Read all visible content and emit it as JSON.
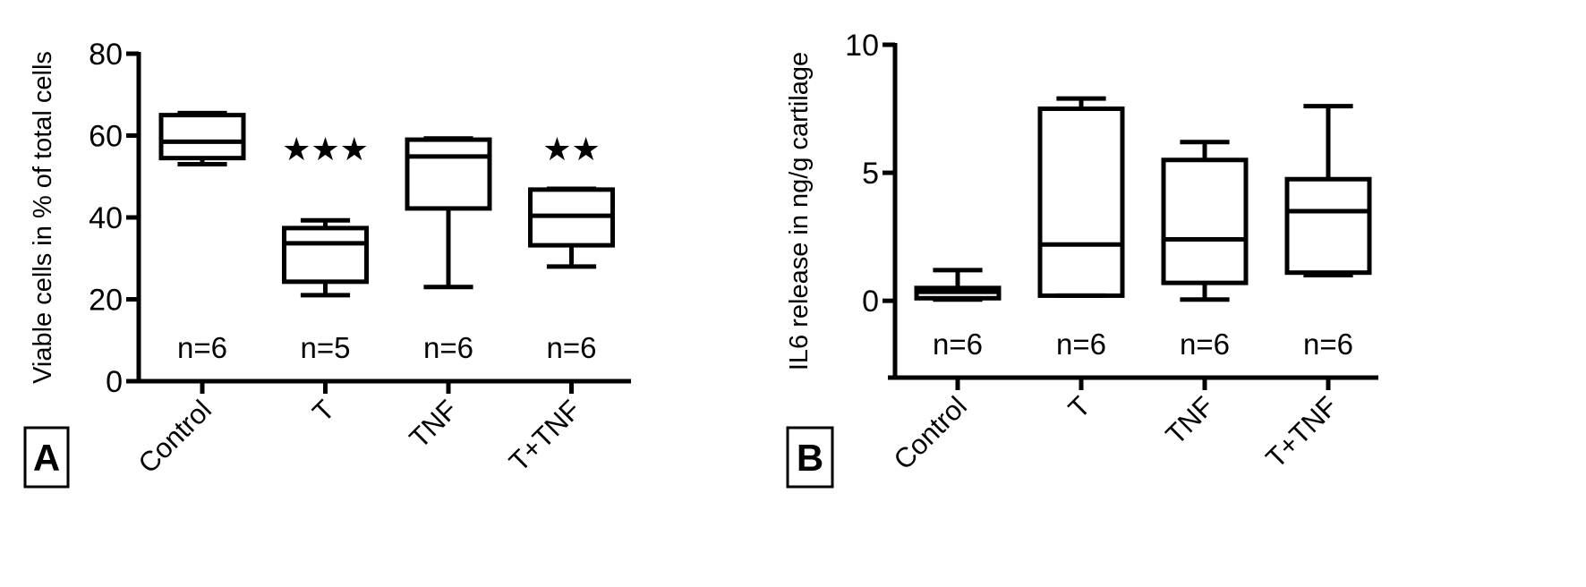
{
  "chart_data": [
    {
      "type": "box",
      "panel_label": "A",
      "y_label": "Viable cells in % of total cells",
      "categories": [
        "Control",
        "T",
        "TNF",
        "T+TNF"
      ],
      "boxes": [
        {
          "min": 53,
          "q1": 54.5,
          "median": 58.5,
          "q3": 65,
          "max": 65.5
        },
        {
          "min": 21,
          "q1": 24.3,
          "median": 33.7,
          "q3": 37.4,
          "max": 39.3
        },
        {
          "min": 23,
          "q1": 42.2,
          "median": 54.9,
          "q3": 59,
          "max": 59.3
        },
        {
          "min": 28,
          "q1": 33.2,
          "median": 40.4,
          "q3": 46.8,
          "max": 47
        }
      ],
      "n_labels": [
        "n=6",
        "n=5",
        "n=6",
        "n=6"
      ],
      "significance": [
        null,
        "★★★",
        null,
        "★★"
      ],
      "ylim": [
        0,
        80
      ],
      "yticks": [
        0,
        20,
        40,
        60,
        80
      ],
      "color": "#000000"
    },
    {
      "type": "box",
      "panel_label": "B",
      "y_label": "IL6 release in ng/g cartilage",
      "categories": [
        "Control",
        "T",
        "TNF",
        "T+TNF"
      ],
      "boxes": [
        {
          "min": 0.05,
          "q1": 0.1,
          "median": 0.35,
          "q3": 0.5,
          "max": 1.2
        },
        {
          "min": 0.2,
          "q1": 0.2,
          "median": 2.2,
          "q3": 7.5,
          "max": 7.9
        },
        {
          "min": 0.05,
          "q1": 0.7,
          "median": 2.4,
          "q3": 5.5,
          "max": 6.2
        },
        {
          "min": 1.0,
          "q1": 1.1,
          "median": 3.5,
          "q3": 4.75,
          "max": 7.6
        }
      ],
      "n_labels": [
        "n=6",
        "n=6",
        "n=6",
        "n=6"
      ],
      "ylim": [
        -3,
        10
      ],
      "yticks": [
        0,
        5,
        10
      ],
      "color": "#000000"
    }
  ]
}
